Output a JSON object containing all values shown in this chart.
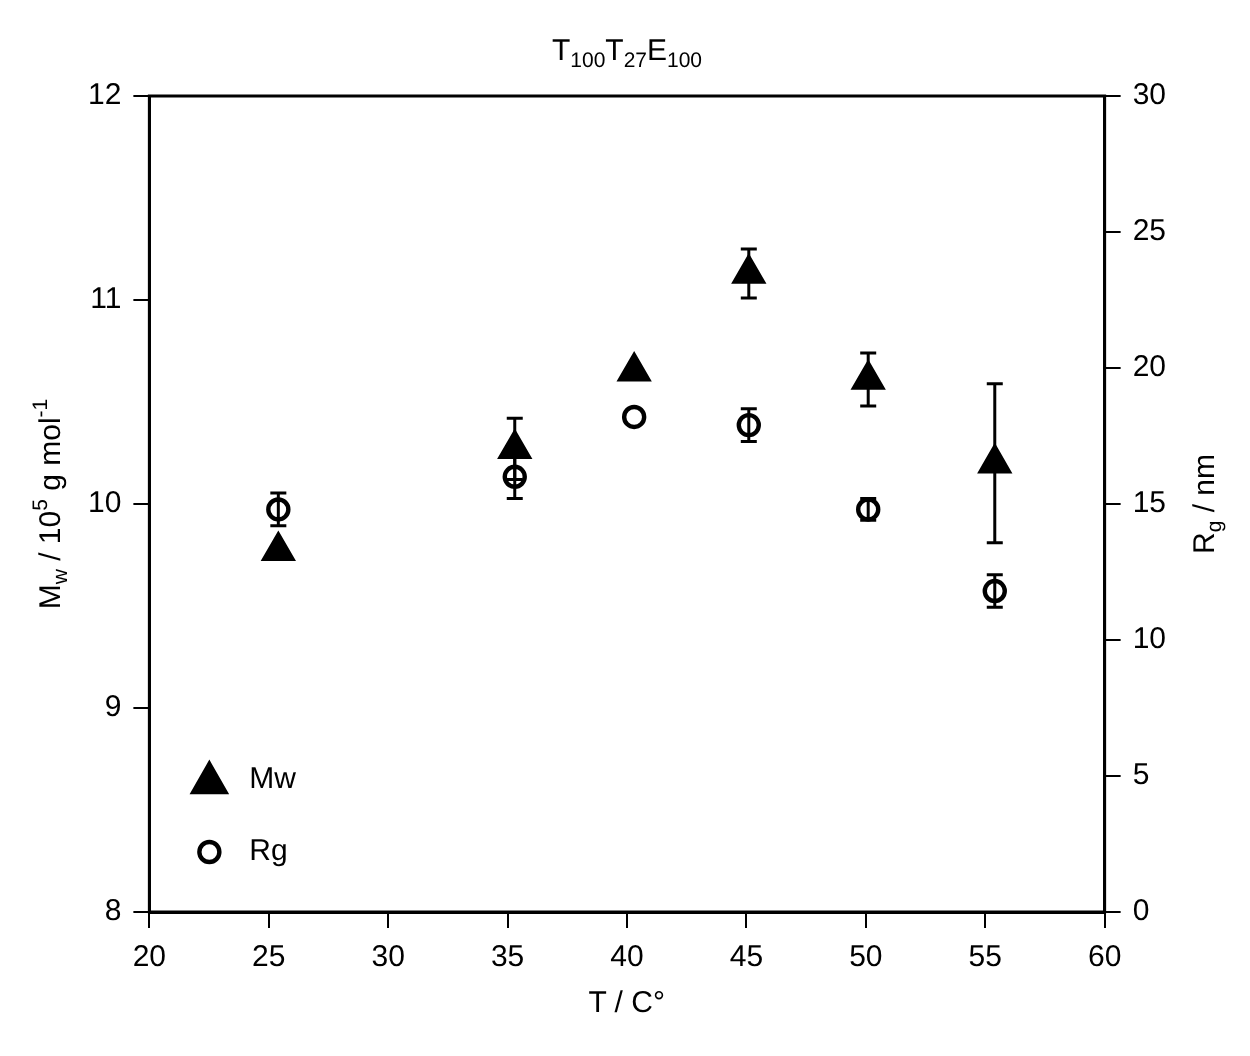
{
  "chart_data": {
    "type": "scatter",
    "title": "T$_{100}$T$_{27}$E$_{100}$",
    "xlabel": "T / C°",
    "ylabel": "M$_{w}$ / 10$^{5}$ g mol$^{-1}$",
    "y2label": "R$_{g}$ / nm",
    "xlim": [
      20,
      60
    ],
    "xticks": [
      20,
      25,
      30,
      35,
      40,
      45,
      50,
      55,
      60
    ],
    "ylim": [
      8,
      12
    ],
    "yticks": [
      8,
      9,
      10,
      11,
      12
    ],
    "y2lim": [
      0,
      30
    ],
    "y2ticks": [
      0,
      5,
      10,
      15,
      20,
      25,
      30
    ],
    "grid": false,
    "legend": "bottom left",
    "series": [
      {
        "name": "Mw",
        "color": "#000000",
        "marker": "triangle",
        "x": [
          25.4,
          35.3,
          40.3,
          45.1,
          50.1,
          55.4
        ],
        "values": [
          9.77,
          10.27,
          10.65,
          11.13,
          10.61,
          10.2
        ],
        "errors": [
          null,
          0.15,
          null,
          0.12,
          0.13,
          0.39
        ]
      },
      {
        "name": "Rg",
        "color": "#000000",
        "marker": "circle",
        "axis": "y2",
        "x": [
          25.4,
          35.3,
          40.3,
          45.1,
          50.1,
          55.4
        ],
        "values": [
          14.8,
          16.0,
          18.2,
          17.9,
          14.8,
          11.8
        ],
        "errors": [
          0.6,
          0.8,
          null,
          0.6,
          0.4,
          0.6
        ]
      }
    ]
  }
}
